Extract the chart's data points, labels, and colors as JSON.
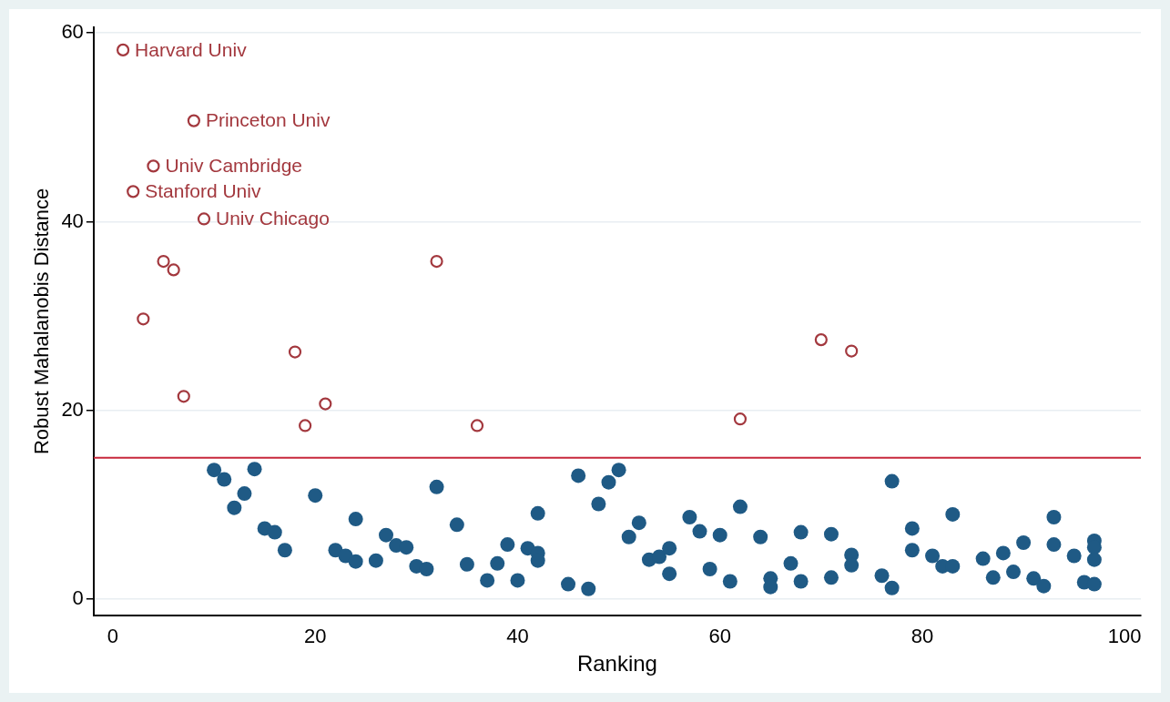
{
  "chart_data": {
    "type": "scatter",
    "xlabel": "Ranking",
    "ylabel": "Robust Mahalanobis Distance",
    "xlim": [
      -1.9,
      101.6
    ],
    "ylim": [
      -1.7,
      60.6
    ],
    "xticks": [
      0,
      20,
      40,
      60,
      80,
      100
    ],
    "yticks": [
      0,
      20,
      40,
      60
    ],
    "grid": "y",
    "legend": false,
    "marker": "circle",
    "ref_lines": [
      {
        "axis": "y",
        "value": 15,
        "color": "#c8283c"
      }
    ],
    "series": [
      {
        "color": "#a3383e",
        "x": [
          1,
          8,
          4,
          2,
          9,
          5,
          6,
          3,
          7,
          32,
          18,
          19,
          21,
          36,
          62,
          70,
          73
        ],
        "values": [
          58.2,
          50.7,
          45.9,
          43.2,
          40.3,
          35.8,
          34.9,
          29.7,
          21.5,
          35.8,
          26.2,
          18.4,
          20.7,
          18.4,
          19.1,
          27.5,
          26.3
        ]
      },
      {
        "color": "#1f5a85",
        "x": [
          10,
          11,
          12,
          13,
          14,
          15,
          16,
          17,
          20,
          22,
          23,
          24,
          24,
          26,
          27,
          28,
          29,
          30,
          31,
          32,
          34,
          35,
          37,
          38,
          39,
          40,
          41,
          42,
          42,
          42,
          45,
          46,
          47,
          48,
          49,
          50,
          51,
          52,
          53,
          54,
          55,
          55,
          57,
          58,
          59,
          60,
          61,
          62,
          64,
          65,
          65,
          67,
          68,
          68,
          71,
          71,
          73,
          73,
          76,
          77,
          77,
          79,
          79,
          81,
          82,
          83,
          83,
          86,
          87,
          88,
          89,
          90,
          91,
          92,
          93,
          93,
          95,
          96,
          97,
          97,
          97,
          97
        ],
        "values": [
          13.7,
          12.7,
          9.7,
          11.2,
          13.8,
          7.5,
          7.1,
          5.2,
          11.0,
          5.2,
          4.6,
          8.5,
          4.0,
          4.1,
          6.8,
          5.7,
          5.5,
          3.5,
          3.2,
          11.9,
          7.9,
          3.7,
          2.0,
          3.8,
          5.8,
          2.0,
          5.4,
          4.9,
          9.1,
          4.1,
          1.6,
          13.1,
          1.1,
          10.1,
          12.4,
          13.7,
          6.6,
          8.1,
          4.2,
          4.5,
          5.4,
          2.7,
          8.7,
          7.2,
          3.2,
          6.8,
          1.9,
          9.8,
          6.6,
          2.2,
          1.3,
          3.8,
          7.1,
          1.9,
          6.9,
          2.3,
          4.7,
          3.6,
          2.5,
          12.5,
          1.2,
          7.5,
          5.2,
          4.6,
          3.5,
          3.5,
          9.0,
          4.3,
          2.3,
          4.9,
          2.9,
          6.0,
          2.2,
          1.4,
          8.7,
          5.8,
          4.6,
          1.8,
          1.6,
          6.2,
          5.5,
          4.2
        ]
      }
    ],
    "annotations": [
      {
        "text": "Harvard Univ",
        "x": 1,
        "y": 58.2
      },
      {
        "text": "Princeton Univ",
        "x": 8,
        "y": 50.7
      },
      {
        "text": "Univ Cambridge",
        "x": 4,
        "y": 45.9
      },
      {
        "text": "Stanford Univ",
        "x": 2,
        "y": 43.2
      },
      {
        "text": "Univ Chicago",
        "x": 9,
        "y": 40.3
      }
    ]
  }
}
